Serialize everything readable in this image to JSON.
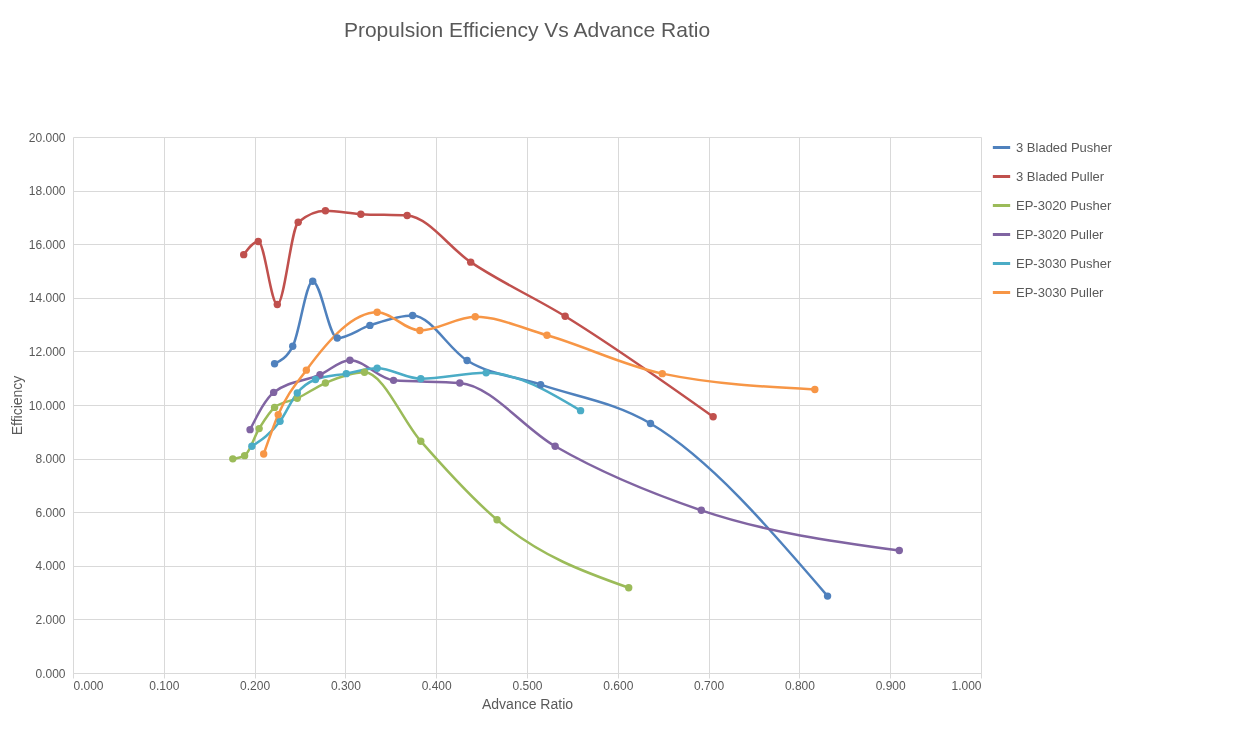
{
  "chart_data": {
    "type": "line",
    "title": "Propulsion Efficiency Vs Advance Ratio",
    "xlabel": "Advance Ratio",
    "ylabel": "Efficiency",
    "xlim": [
      0,
      1
    ],
    "xticks": [
      {
        "value": 0,
        "label": "0.000"
      },
      {
        "value": 0.1,
        "label": "0.100"
      },
      {
        "value": 0.2,
        "label": "0.200"
      },
      {
        "value": 0.3,
        "label": "0.300"
      },
      {
        "value": 0.4,
        "label": "0.400"
      },
      {
        "value": 0.5,
        "label": "0.500"
      },
      {
        "value": 0.6,
        "label": "0.600"
      },
      {
        "value": 0.7,
        "label": "0.700"
      },
      {
        "value": 0.8,
        "label": "0.800"
      },
      {
        "value": 0.9,
        "label": "0.900"
      },
      {
        "value": 1,
        "label": "1.000"
      }
    ],
    "ylim": [
      0,
      20
    ],
    "yticks": [
      {
        "value": 0,
        "label": "0.000"
      },
      {
        "value": 2,
        "label": "2.000"
      },
      {
        "value": 4,
        "label": "4.000"
      },
      {
        "value": 6,
        "label": "6.000"
      },
      {
        "value": 8,
        "label": "8.000"
      },
      {
        "value": 10,
        "label": "10.000"
      },
      {
        "value": 12,
        "label": "12.000"
      },
      {
        "value": 14,
        "label": "14.000"
      },
      {
        "value": 16,
        "label": "16.000"
      },
      {
        "value": 18,
        "label": "18.000"
      },
      {
        "value": 20,
        "label": "20.000"
      }
    ],
    "grid": true,
    "legend": "right",
    "marker": "circle",
    "series": [
      {
        "name": "3 Bladed Pusher",
        "color": "#4f81bd",
        "x": [
          0.222,
          0.242,
          0.264,
          0.291,
          0.327,
          0.374,
          0.434,
          0.515,
          0.636,
          0.831
        ],
        "values": [
          11.54,
          12.19,
          14.62,
          12.5,
          12.97,
          13.34,
          11.66,
          10.76,
          9.31,
          2.87
        ]
      },
      {
        "name": "3 Bladed Puller",
        "color": "#c0504d",
        "x": [
          0.188,
          0.204,
          0.225,
          0.248,
          0.278,
          0.317,
          0.368,
          0.438,
          0.542,
          0.705
        ],
        "values": [
          15.61,
          16.1,
          13.75,
          16.82,
          17.25,
          17.12,
          17.07,
          15.33,
          13.31,
          9.56
        ]
      },
      {
        "name": "EP-3020 Pusher",
        "color": "#9bbb59",
        "x": [
          0.176,
          0.189,
          0.205,
          0.222,
          0.247,
          0.278,
          0.321,
          0.383,
          0.467,
          0.612
        ],
        "values": [
          7.99,
          8.11,
          9.12,
          9.91,
          10.25,
          10.82,
          11.22,
          8.65,
          5.72,
          3.18
        ]
      },
      {
        "name": "EP-3020 Puller",
        "color": "#8064a2",
        "x": [
          0.195,
          0.221,
          0.272,
          0.305,
          0.353,
          0.426,
          0.531,
          0.692,
          0.91
        ],
        "values": [
          9.08,
          10.47,
          11.13,
          11.67,
          10.92,
          10.82,
          8.46,
          6.07,
          4.57
        ]
      },
      {
        "name": "EP-3030 Pusher",
        "color": "#4bacc6",
        "x": [
          0.197,
          0.228,
          0.247,
          0.267,
          0.301,
          0.335,
          0.383,
          0.455,
          0.559
        ],
        "values": [
          8.46,
          9.39,
          10.45,
          10.95,
          11.17,
          11.37,
          10.98,
          11.2,
          9.79
        ]
      },
      {
        "name": "EP-3030 Puller",
        "color": "#f79646",
        "x": [
          0.21,
          0.226,
          0.257,
          0.335,
          0.382,
          0.443,
          0.522,
          0.649,
          0.817
        ],
        "values": [
          8.17,
          9.64,
          11.3,
          13.46,
          12.78,
          13.29,
          12.6,
          11.17,
          10.58
        ]
      }
    ]
  }
}
